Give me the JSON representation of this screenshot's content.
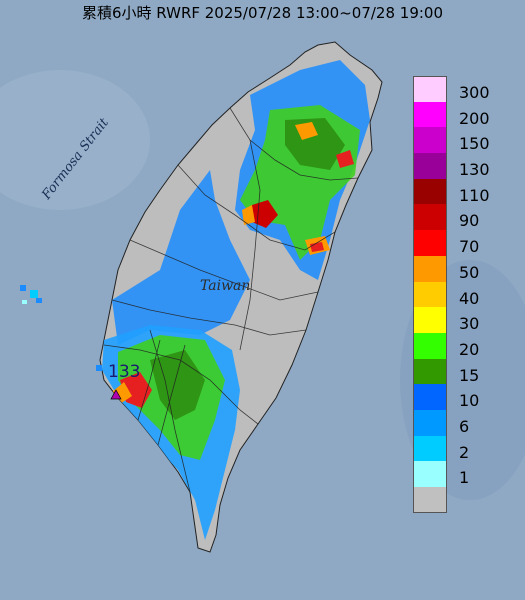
{
  "title": "累積6小時 RWRF 2025/07/28 13:00~07/28 19:00",
  "map_labels": {
    "strait": "Formosa Strait",
    "island": "Taiwan",
    "station_id": "133"
  },
  "legend": {
    "levels": [
      {
        "label": "300",
        "color": "#ffccff"
      },
      {
        "label": "200",
        "color": "#ff00ff"
      },
      {
        "label": "150",
        "color": "#cc00cc"
      },
      {
        "label": "130",
        "color": "#990099"
      },
      {
        "label": "110",
        "color": "#990000"
      },
      {
        "label": "90",
        "color": "#cc0000"
      },
      {
        "label": "70",
        "color": "#ff0000"
      },
      {
        "label": "50",
        "color": "#ff9900"
      },
      {
        "label": "40",
        "color": "#ffcc00"
      },
      {
        "label": "30",
        "color": "#ffff00"
      },
      {
        "label": "20",
        "color": "#33ff00"
      },
      {
        "label": "15",
        "color": "#339900"
      },
      {
        "label": "10",
        "color": "#0066ff"
      },
      {
        "label": "6",
        "color": "#0099ff"
      },
      {
        "label": "2",
        "color": "#00ccff"
      },
      {
        "label": "1",
        "color": "#99ffff"
      },
      {
        "label": "",
        "color": "#c0c0c0"
      }
    ]
  },
  "colors": {
    "sea": "#8fa9c4",
    "land_no_rain": "#bdbdbd"
  }
}
